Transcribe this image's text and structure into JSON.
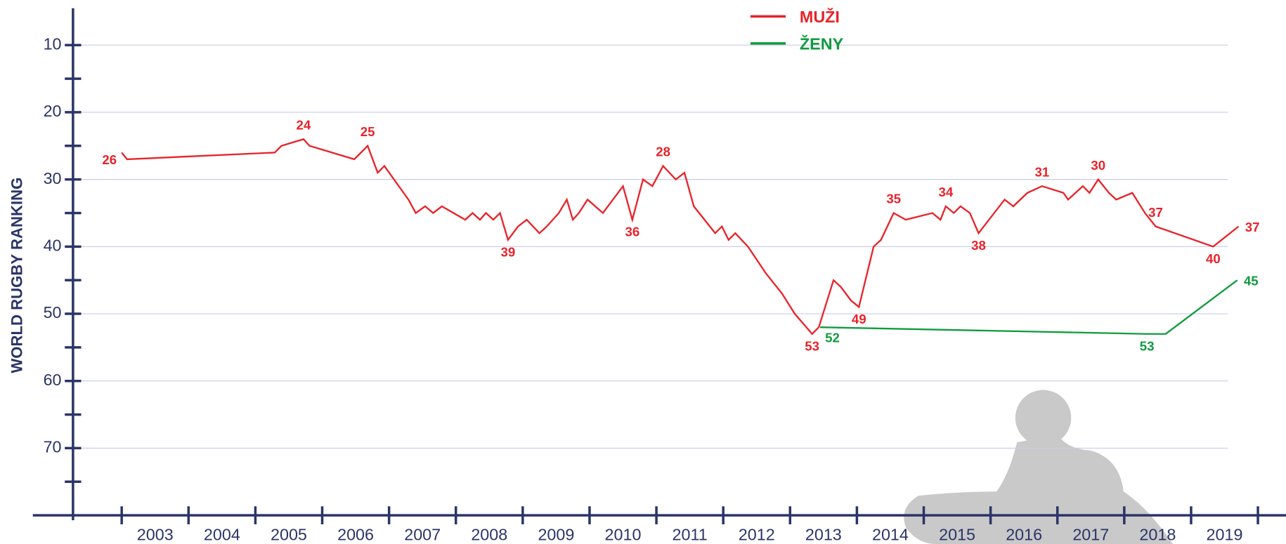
{
  "chart_data": {
    "type": "line",
    "y_label": "WORLD RUGBY RANKING",
    "xlim": [
      2001.67,
      2020.42
    ],
    "ylim": [
      80,
      5
    ],
    "yticks": [
      10,
      20,
      30,
      40,
      50,
      60,
      70
    ],
    "yminor_ticks": [
      15,
      25,
      35,
      45,
      55,
      65,
      75
    ],
    "xticks": [
      {
        "value": 2003.5,
        "label": "2003"
      },
      {
        "value": 2004.5,
        "label": "2004"
      },
      {
        "value": 2005.5,
        "label": "2005"
      },
      {
        "value": 2006.5,
        "label": "2006"
      },
      {
        "value": 2007.5,
        "label": "2007"
      },
      {
        "value": 2008.5,
        "label": "2008"
      },
      {
        "value": 2009.5,
        "label": "2009"
      },
      {
        "value": 2010.5,
        "label": "2010"
      },
      {
        "value": 2011.5,
        "label": "2011"
      },
      {
        "value": 2012.5,
        "label": "2012"
      },
      {
        "value": 2013.5,
        "label": "2013"
      },
      {
        "value": 2014.5,
        "label": "2014"
      },
      {
        "value": 2015.5,
        "label": "2015"
      },
      {
        "value": 2016.5,
        "label": "2016"
      },
      {
        "value": 2017.5,
        "label": "2017"
      },
      {
        "value": 2018.5,
        "label": "2018"
      },
      {
        "value": 2019.5,
        "label": "2019"
      }
    ],
    "xminor_ticks": [
      2003,
      2004,
      2005,
      2006,
      2007,
      2008,
      2009,
      2010,
      2011,
      2012,
      2013,
      2014,
      2015,
      2016,
      2017,
      2018,
      2019,
      2020
    ],
    "grid": true,
    "legend": "top",
    "series": [
      {
        "name": "MUŽI",
        "color": "#e8232a",
        "x": [
          2003.0,
          2003.08,
          2005.29,
          2005.39,
          2005.72,
          2005.81,
          2006.48,
          2006.68,
          2006.83,
          2006.93,
          2007.29,
          2007.4,
          2007.54,
          2007.66,
          2007.79,
          2008.14,
          2008.25,
          2008.36,
          2008.45,
          2008.56,
          2008.66,
          2008.78,
          2008.93,
          2009.06,
          2009.25,
          2009.36,
          2009.54,
          2009.66,
          2009.75,
          2009.84,
          2009.97,
          2010.2,
          2010.5,
          2010.64,
          2010.8,
          2010.94,
          2011.1,
          2011.29,
          2011.42,
          2011.56,
          2011.8,
          2011.88,
          2011.98,
          2012.08,
          2012.18,
          2012.37,
          2012.64,
          2012.88,
          2013.07,
          2013.33,
          2013.43,
          2013.65,
          2013.76,
          2013.91,
          2014.03,
          2014.25,
          2014.36,
          2014.55,
          2014.73,
          2015.13,
          2015.25,
          2015.33,
          2015.45,
          2015.55,
          2015.69,
          2015.82,
          2016.21,
          2016.34,
          2016.55,
          2016.77,
          2017.09,
          2017.16,
          2017.38,
          2017.48,
          2017.61,
          2017.77,
          2017.88,
          2018.12,
          2018.31,
          2018.47,
          2019.33,
          2019.71
        ],
        "values": [
          26,
          27,
          26,
          25,
          24,
          25,
          27,
          25,
          29,
          28,
          33,
          35,
          34,
          35,
          34,
          36,
          35,
          36,
          35,
          36,
          35,
          39,
          37,
          36,
          38,
          37,
          35,
          33,
          36,
          35,
          33,
          35,
          31,
          36,
          30,
          31,
          28,
          30,
          29,
          34,
          37,
          38,
          37,
          39,
          38,
          40,
          44,
          47,
          50,
          53,
          52,
          45,
          46,
          48,
          49,
          40,
          39,
          35,
          36,
          35,
          36,
          34,
          35,
          34,
          35,
          38,
          33,
          34,
          32,
          31,
          32,
          33,
          31,
          32,
          30,
          32,
          33,
          32,
          35,
          37,
          40,
          37
        ],
        "labeled_points": [
          0,
          4,
          7,
          21,
          33,
          36,
          49,
          54,
          57,
          61,
          65,
          69,
          74,
          79,
          80,
          81
        ]
      },
      {
        "name": "ŽENY",
        "color": "#119a3f",
        "x": [
          2013.45,
          2018.34,
          2018.62,
          2019.69
        ],
        "values": [
          52,
          53,
          53,
          45
        ],
        "labeled_points": [
          0,
          1,
          3
        ]
      }
    ]
  }
}
